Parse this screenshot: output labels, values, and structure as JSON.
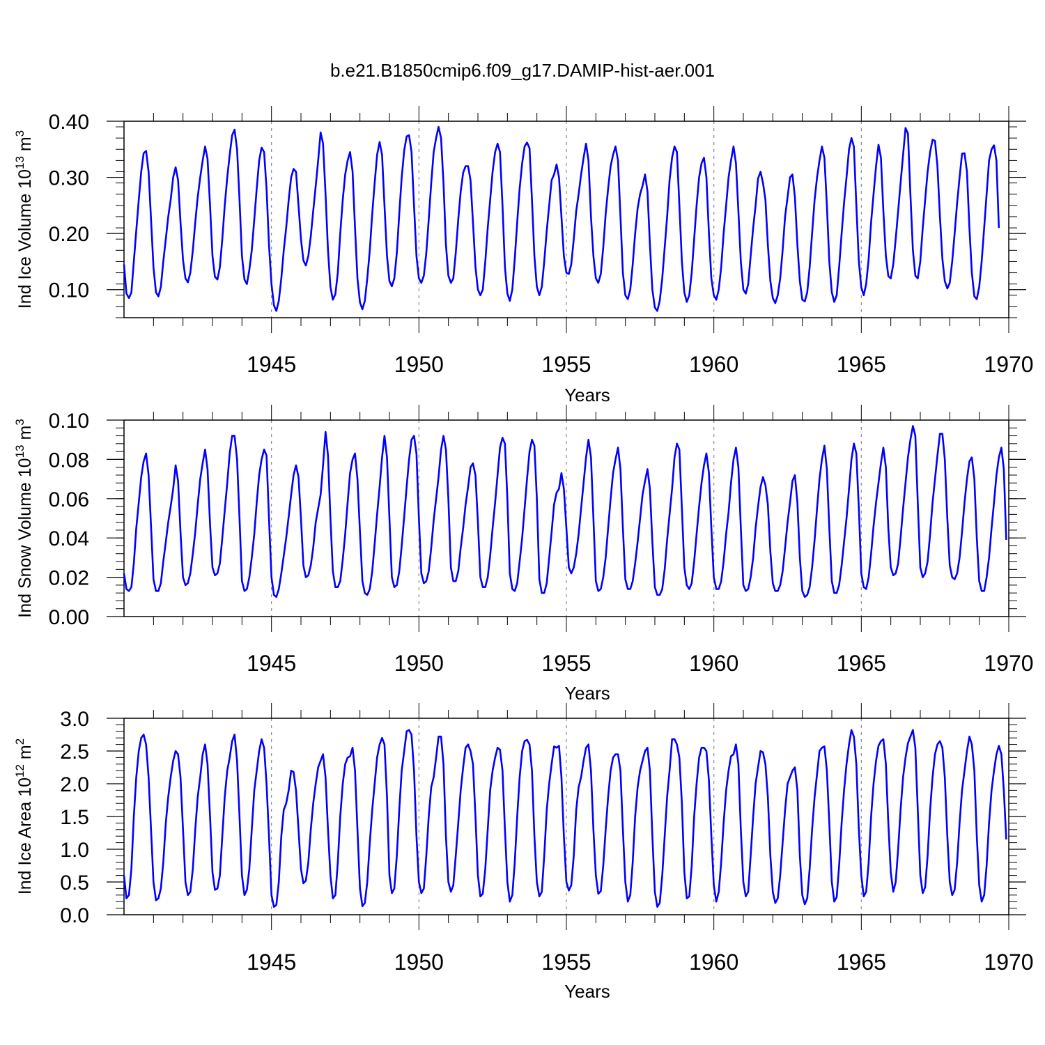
{
  "title": "b.e21.B1850cmip6.f09_g17.DAMIP-hist-aer.001",
  "colors": {
    "line": "#0000ff",
    "axis": "#000000",
    "gridline": "#888888"
  },
  "chart_data": [
    {
      "type": "line",
      "title": "",
      "xlabel": "Years",
      "ylabel": {
        "main": "Ind Ice Volume 10",
        "exp": "13",
        "unit": " m",
        "unit_exp": "3"
      },
      "xlim": [
        1940,
        1970
      ],
      "ylim": [
        0.05,
        0.4
      ],
      "xticks": [
        1945,
        1950,
        1955,
        1960,
        1965,
        1970
      ],
      "yticks": [
        "0.10",
        "0.20",
        "0.30",
        "0.40"
      ],
      "ytick_values": [
        0.1,
        0.2,
        0.3,
        0.4
      ],
      "grid": "dashed vertical at 1945-1965",
      "start_year": 1940,
      "step_years": 0.08333,
      "values": [
        0.145,
        0.093,
        0.085,
        0.095,
        0.15,
        0.205,
        0.26,
        0.31,
        0.343,
        0.347,
        0.31,
        0.225,
        0.14,
        0.095,
        0.088,
        0.105,
        0.15,
        0.19,
        0.23,
        0.26,
        0.3,
        0.318,
        0.295,
        0.22,
        0.153,
        0.12,
        0.113,
        0.13,
        0.17,
        0.22,
        0.265,
        0.3,
        0.33,
        0.355,
        0.333,
        0.25,
        0.16,
        0.123,
        0.118,
        0.14,
        0.19,
        0.25,
        0.3,
        0.34,
        0.375,
        0.385,
        0.35,
        0.26,
        0.16,
        0.118,
        0.11,
        0.135,
        0.17,
        0.225,
        0.28,
        0.33,
        0.353,
        0.345,
        0.28,
        0.18,
        0.11,
        0.072,
        0.062,
        0.08,
        0.12,
        0.17,
        0.21,
        0.26,
        0.3,
        0.315,
        0.31,
        0.25,
        0.19,
        0.152,
        0.143,
        0.16,
        0.195,
        0.24,
        0.285,
        0.33,
        0.38,
        0.36,
        0.27,
        0.17,
        0.105,
        0.082,
        0.092,
        0.13,
        0.2,
        0.26,
        0.305,
        0.33,
        0.345,
        0.31,
        0.21,
        0.12,
        0.077,
        0.065,
        0.08,
        0.12,
        0.17,
        0.235,
        0.29,
        0.34,
        0.363,
        0.34,
        0.25,
        0.16,
        0.115,
        0.106,
        0.12,
        0.165,
        0.235,
        0.3,
        0.348,
        0.373,
        0.375,
        0.345,
        0.25,
        0.16,
        0.12,
        0.112,
        0.125,
        0.165,
        0.225,
        0.29,
        0.345,
        0.37,
        0.39,
        0.37,
        0.29,
        0.18,
        0.125,
        0.112,
        0.12,
        0.165,
        0.225,
        0.275,
        0.308,
        0.32,
        0.32,
        0.295,
        0.22,
        0.14,
        0.1,
        0.09,
        0.1,
        0.15,
        0.21,
        0.26,
        0.31,
        0.345,
        0.36,
        0.345,
        0.25,
        0.14,
        0.093,
        0.08,
        0.1,
        0.155,
        0.22,
        0.28,
        0.325,
        0.355,
        0.362,
        0.352,
        0.26,
        0.16,
        0.105,
        0.09,
        0.105,
        0.15,
        0.205,
        0.25,
        0.295,
        0.305,
        0.323,
        0.3,
        0.23,
        0.16,
        0.13,
        0.128,
        0.145,
        0.19,
        0.24,
        0.27,
        0.305,
        0.335,
        0.36,
        0.33,
        0.23,
        0.16,
        0.12,
        0.112,
        0.128,
        0.175,
        0.235,
        0.28,
        0.32,
        0.34,
        0.355,
        0.33,
        0.23,
        0.13,
        0.09,
        0.083,
        0.1,
        0.145,
        0.2,
        0.245,
        0.27,
        0.285,
        0.305,
        0.275,
        0.18,
        0.1,
        0.068,
        0.062,
        0.08,
        0.12,
        0.175,
        0.23,
        0.295,
        0.335,
        0.355,
        0.345,
        0.25,
        0.15,
        0.095,
        0.078,
        0.09,
        0.13,
        0.19,
        0.25,
        0.3,
        0.325,
        0.335,
        0.3,
        0.2,
        0.12,
        0.09,
        0.082,
        0.1,
        0.14,
        0.2,
        0.25,
        0.3,
        0.33,
        0.355,
        0.325,
        0.24,
        0.15,
        0.1,
        0.093,
        0.11,
        0.16,
        0.21,
        0.25,
        0.298,
        0.31,
        0.29,
        0.26,
        0.18,
        0.115,
        0.085,
        0.076,
        0.09,
        0.12,
        0.17,
        0.23,
        0.265,
        0.3,
        0.305,
        0.265,
        0.18,
        0.115,
        0.082,
        0.079,
        0.095,
        0.14,
        0.2,
        0.26,
        0.3,
        0.33,
        0.355,
        0.335,
        0.25,
        0.15,
        0.095,
        0.078,
        0.09,
        0.14,
        0.2,
        0.255,
        0.3,
        0.35,
        0.37,
        0.355,
        0.25,
        0.15,
        0.104,
        0.09,
        0.11,
        0.155,
        0.22,
        0.27,
        0.32,
        0.358,
        0.335,
        0.24,
        0.16,
        0.124,
        0.12,
        0.145,
        0.19,
        0.24,
        0.29,
        0.34,
        0.388,
        0.378,
        0.27,
        0.17,
        0.125,
        0.12,
        0.15,
        0.21,
        0.26,
        0.31,
        0.345,
        0.367,
        0.365,
        0.32,
        0.23,
        0.155,
        0.115,
        0.102,
        0.112,
        0.15,
        0.2,
        0.255,
        0.3,
        0.342,
        0.343,
        0.31,
        0.21,
        0.13,
        0.088,
        0.083,
        0.105,
        0.15,
        0.21,
        0.27,
        0.33,
        0.35,
        0.357,
        0.33,
        0.21
      ]
    },
    {
      "type": "line",
      "title": "",
      "xlabel": "Years",
      "ylabel": {
        "main": "Ind Snow Volume 10",
        "exp": "13",
        "unit": " m",
        "unit_exp": "3"
      },
      "xlim": [
        1940,
        1970
      ],
      "ylim": [
        0,
        0.1
      ],
      "xticks": [
        1945,
        1950,
        1955,
        1960,
        1965,
        1970
      ],
      "yticks": [
        "0.00",
        "0.02",
        "0.04",
        "0.06",
        "0.08",
        "0.10"
      ],
      "ytick_values": [
        0,
        0.02,
        0.04,
        0.06,
        0.08,
        0.1
      ],
      "grid": "dashed vertical at 1945-1965",
      "start_year": 1940,
      "step_years": 0.08333,
      "values": [
        0.022,
        0.014,
        0.013,
        0.015,
        0.027,
        0.045,
        0.058,
        0.071,
        0.079,
        0.083,
        0.072,
        0.046,
        0.019,
        0.013,
        0.013,
        0.017,
        0.028,
        0.038,
        0.048,
        0.056,
        0.065,
        0.077,
        0.069,
        0.043,
        0.02,
        0.016,
        0.017,
        0.022,
        0.032,
        0.043,
        0.057,
        0.07,
        0.078,
        0.085,
        0.075,
        0.047,
        0.025,
        0.021,
        0.022,
        0.027,
        0.04,
        0.054,
        0.068,
        0.083,
        0.092,
        0.092,
        0.08,
        0.05,
        0.018,
        0.013,
        0.014,
        0.02,
        0.03,
        0.042,
        0.058,
        0.072,
        0.08,
        0.085,
        0.082,
        0.05,
        0.02,
        0.011,
        0.01,
        0.014,
        0.022,
        0.031,
        0.04,
        0.051,
        0.062,
        0.072,
        0.077,
        0.071,
        0.05,
        0.026,
        0.02,
        0.021,
        0.026,
        0.035,
        0.048,
        0.055,
        0.062,
        0.077,
        0.094,
        0.082,
        0.05,
        0.023,
        0.015,
        0.015,
        0.018,
        0.029,
        0.042,
        0.058,
        0.073,
        0.08,
        0.083,
        0.07,
        0.043,
        0.018,
        0.012,
        0.011,
        0.014,
        0.023,
        0.037,
        0.052,
        0.066,
        0.081,
        0.092,
        0.081,
        0.05,
        0.02,
        0.015,
        0.016,
        0.023,
        0.036,
        0.051,
        0.066,
        0.08,
        0.09,
        0.092,
        0.083,
        0.05,
        0.022,
        0.017,
        0.018,
        0.023,
        0.035,
        0.049,
        0.06,
        0.071,
        0.085,
        0.092,
        0.085,
        0.06,
        0.025,
        0.018,
        0.018,
        0.023,
        0.035,
        0.045,
        0.057,
        0.066,
        0.076,
        0.078,
        0.072,
        0.048,
        0.02,
        0.015,
        0.015,
        0.02,
        0.031,
        0.045,
        0.058,
        0.072,
        0.086,
        0.091,
        0.088,
        0.06,
        0.022,
        0.014,
        0.013,
        0.017,
        0.028,
        0.04,
        0.055,
        0.07,
        0.084,
        0.09,
        0.087,
        0.06,
        0.019,
        0.012,
        0.012,
        0.017,
        0.03,
        0.043,
        0.057,
        0.063,
        0.065,
        0.073,
        0.065,
        0.045,
        0.025,
        0.022,
        0.025,
        0.032,
        0.042,
        0.055,
        0.068,
        0.081,
        0.09,
        0.081,
        0.05,
        0.018,
        0.013,
        0.014,
        0.02,
        0.03,
        0.045,
        0.06,
        0.073,
        0.08,
        0.086,
        0.075,
        0.045,
        0.019,
        0.014,
        0.014,
        0.018,
        0.027,
        0.038,
        0.05,
        0.062,
        0.069,
        0.075,
        0.065,
        0.038,
        0.015,
        0.011,
        0.011,
        0.014,
        0.024,
        0.039,
        0.052,
        0.065,
        0.081,
        0.088,
        0.085,
        0.055,
        0.025,
        0.016,
        0.014,
        0.017,
        0.028,
        0.042,
        0.056,
        0.068,
        0.077,
        0.083,
        0.073,
        0.045,
        0.02,
        0.014,
        0.014,
        0.018,
        0.028,
        0.042,
        0.053,
        0.068,
        0.08,
        0.086,
        0.076,
        0.045,
        0.016,
        0.013,
        0.014,
        0.02,
        0.03,
        0.045,
        0.056,
        0.066,
        0.071,
        0.067,
        0.057,
        0.033,
        0.017,
        0.013,
        0.013,
        0.016,
        0.023,
        0.035,
        0.048,
        0.058,
        0.069,
        0.072,
        0.058,
        0.03,
        0.013,
        0.01,
        0.011,
        0.015,
        0.025,
        0.039,
        0.055,
        0.07,
        0.08,
        0.087,
        0.075,
        0.045,
        0.018,
        0.012,
        0.012,
        0.016,
        0.026,
        0.038,
        0.05,
        0.065,
        0.08,
        0.088,
        0.083,
        0.055,
        0.022,
        0.015,
        0.014,
        0.02,
        0.032,
        0.046,
        0.058,
        0.068,
        0.078,
        0.086,
        0.076,
        0.045,
        0.025,
        0.021,
        0.022,
        0.027,
        0.04,
        0.055,
        0.068,
        0.081,
        0.09,
        0.097,
        0.092,
        0.058,
        0.025,
        0.02,
        0.022,
        0.028,
        0.042,
        0.058,
        0.07,
        0.082,
        0.093,
        0.093,
        0.08,
        0.05,
        0.026,
        0.02,
        0.019,
        0.022,
        0.03,
        0.043,
        0.058,
        0.07,
        0.079,
        0.081,
        0.07,
        0.04,
        0.018,
        0.013,
        0.013,
        0.02,
        0.03,
        0.045,
        0.058,
        0.072,
        0.081,
        0.086,
        0.075,
        0.039
      ]
    },
    {
      "type": "line",
      "title": "",
      "xlabel": "Years",
      "ylabel": {
        "main": "Ind Ice Area 10",
        "exp": "12",
        "unit": " m",
        "unit_exp": "2"
      },
      "xlim": [
        1940,
        1970
      ],
      "ylim": [
        0,
        3
      ],
      "xticks": [
        1945,
        1950,
        1955,
        1960,
        1965,
        1970
      ],
      "yticks": [
        "0.0",
        "0.5",
        "1.0",
        "1.5",
        "2.0",
        "2.5",
        "3.0"
      ],
      "ytick_values": [
        0,
        0.5,
        1,
        1.5,
        2,
        2.5,
        3
      ],
      "grid": "dashed vertical at 1945-1965",
      "start_year": 1940,
      "step_years": 0.08333,
      "values": [
        0.6,
        0.25,
        0.3,
        0.7,
        1.5,
        2.1,
        2.5,
        2.7,
        2.75,
        2.6,
        2.1,
        1.3,
        0.5,
        0.22,
        0.25,
        0.4,
        0.8,
        1.4,
        1.8,
        2.1,
        2.35,
        2.5,
        2.45,
        2.1,
        1.3,
        0.5,
        0.3,
        0.35,
        0.7,
        1.3,
        1.8,
        2.1,
        2.45,
        2.6,
        2.3,
        1.5,
        0.65,
        0.38,
        0.4,
        0.6,
        1.2,
        1.8,
        2.2,
        2.4,
        2.65,
        2.75,
        2.35,
        1.5,
        0.6,
        0.3,
        0.38,
        0.7,
        1.3,
        1.9,
        2.2,
        2.5,
        2.68,
        2.55,
        2.0,
        1.2,
        0.3,
        0.12,
        0.15,
        0.5,
        1.2,
        1.6,
        1.7,
        1.9,
        2.2,
        2.18,
        1.9,
        1.3,
        0.7,
        0.48,
        0.52,
        0.8,
        1.3,
        1.7,
        2.0,
        2.25,
        2.35,
        2.45,
        2.1,
        1.3,
        0.6,
        0.25,
        0.3,
        0.8,
        1.5,
        2.0,
        2.3,
        2.4,
        2.42,
        2.55,
        2.2,
        1.3,
        0.4,
        0.13,
        0.18,
        0.5,
        1.1,
        1.6,
        2.0,
        2.4,
        2.6,
        2.7,
        2.6,
        1.8,
        0.6,
        0.33,
        0.4,
        0.9,
        1.6,
        2.2,
        2.5,
        2.8,
        2.82,
        2.75,
        2.2,
        1.2,
        0.5,
        0.33,
        0.4,
        0.9,
        1.5,
        1.95,
        2.1,
        2.4,
        2.72,
        2.72,
        2.3,
        1.2,
        0.5,
        0.35,
        0.45,
        0.9,
        1.4,
        1.9,
        2.25,
        2.55,
        2.6,
        2.5,
        2.3,
        1.5,
        0.6,
        0.28,
        0.32,
        0.7,
        1.3,
        1.9,
        2.2,
        2.4,
        2.55,
        2.52,
        2.2,
        1.3,
        0.5,
        0.2,
        0.3,
        0.8,
        1.5,
        2.1,
        2.5,
        2.65,
        2.67,
        2.6,
        2.2,
        1.2,
        0.5,
        0.28,
        0.35,
        0.9,
        1.6,
        2.0,
        2.3,
        2.57,
        2.55,
        2.58,
        2.1,
        1.2,
        0.5,
        0.37,
        0.45,
        0.9,
        1.6,
        1.95,
        2.1,
        2.35,
        2.55,
        2.6,
        2.2,
        1.3,
        0.6,
        0.32,
        0.36,
        0.75,
        1.3,
        1.8,
        2.2,
        2.4,
        2.45,
        2.45,
        2.2,
        1.3,
        0.5,
        0.2,
        0.3,
        0.8,
        1.5,
        1.95,
        2.2,
        2.35,
        2.5,
        2.55,
        2.2,
        1.2,
        0.35,
        0.12,
        0.18,
        0.6,
        1.2,
        1.8,
        2.2,
        2.68,
        2.68,
        2.6,
        2.4,
        1.7,
        0.65,
        0.25,
        0.28,
        0.75,
        1.5,
        2.0,
        2.4,
        2.55,
        2.55,
        2.5,
        2.05,
        1.2,
        0.45,
        0.2,
        0.35,
        0.8,
        1.4,
        1.9,
        2.2,
        2.42,
        2.45,
        2.6,
        2.3,
        1.3,
        0.5,
        0.28,
        0.35,
        0.9,
        1.5,
        2.0,
        2.25,
        2.5,
        2.48,
        2.3,
        1.8,
        0.9,
        0.35,
        0.18,
        0.25,
        0.6,
        1.1,
        1.6,
        2.0,
        2.1,
        2.2,
        2.25,
        1.9,
        0.9,
        0.3,
        0.16,
        0.25,
        0.7,
        1.3,
        1.8,
        2.15,
        2.5,
        2.55,
        2.57,
        2.2,
        1.4,
        0.5,
        0.2,
        0.27,
        0.75,
        1.4,
        1.9,
        2.3,
        2.6,
        2.82,
        2.72,
        2.3,
        1.3,
        0.6,
        0.28,
        0.35,
        0.8,
        1.5,
        2.0,
        2.35,
        2.58,
        2.65,
        2.68,
        2.3,
        1.4,
        0.65,
        0.35,
        0.5,
        1.0,
        1.6,
        2.1,
        2.4,
        2.62,
        2.72,
        2.82,
        2.55,
        1.6,
        0.6,
        0.33,
        0.42,
        0.9,
        1.6,
        2.1,
        2.45,
        2.6,
        2.65,
        2.55,
        2.1,
        1.2,
        0.5,
        0.3,
        0.38,
        0.8,
        1.4,
        1.9,
        2.2,
        2.5,
        2.72,
        2.6,
        2.2,
        1.2,
        0.45,
        0.2,
        0.3,
        0.75,
        1.4,
        1.9,
        2.2,
        2.45,
        2.58,
        2.45,
        1.9,
        1.15
      ]
    }
  ]
}
